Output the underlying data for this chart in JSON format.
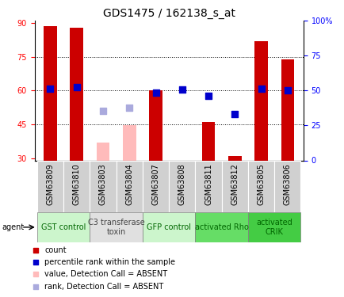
{
  "title": "GDS1475 / 162138_s_at",
  "samples": [
    "GSM63809",
    "GSM63810",
    "GSM63803",
    "GSM63804",
    "GSM63807",
    "GSM63808",
    "GSM63811",
    "GSM63812",
    "GSM63805",
    "GSM63806"
  ],
  "groups": [
    {
      "label": "GST control",
      "span": [
        0,
        2
      ],
      "color": "#ccf5cc"
    },
    {
      "label": "C3 transferase\ntoxin",
      "span": [
        2,
        4
      ],
      "color": "#e0e0e0"
    },
    {
      "label": "GFP control",
      "span": [
        4,
        6
      ],
      "color": "#ccf5cc"
    },
    {
      "label": "activated Rho",
      "span": [
        6,
        8
      ],
      "color": "#66dd66"
    },
    {
      "label": "activated\nCRIK",
      "span": [
        8,
        10
      ],
      "color": "#44cc44"
    }
  ],
  "bar_values": [
    88.5,
    88.0,
    null,
    null,
    60.0,
    null,
    46.0,
    31.0,
    82.0,
    74.0
  ],
  "bar_absent_values": [
    null,
    null,
    37.0,
    44.5,
    null,
    null,
    null,
    null,
    null,
    null
  ],
  "dot_values": [
    61.0,
    61.5,
    null,
    null,
    59.0,
    60.5,
    57.5,
    49.5,
    61.0,
    60.0
  ],
  "dot_absent_values": [
    null,
    null,
    51.0,
    52.5,
    null,
    null,
    null,
    null,
    null,
    null
  ],
  "ylim_left": [
    29,
    91
  ],
  "ylim_right": [
    0,
    100
  ],
  "yticks_left": [
    30,
    45,
    60,
    75,
    90
  ],
  "yticks_right": [
    0,
    25,
    50,
    75,
    100
  ],
  "bar_color": "#cc0000",
  "bar_absent_color": "#ffbbbb",
  "dot_color": "#0000cc",
  "dot_absent_color": "#aaaadd",
  "bar_width": 0.5,
  "dot_size": 28,
  "sample_label_fontsize": 7,
  "group_label_fontsize": 7,
  "title_fontsize": 10,
  "legend_fontsize": 7,
  "agent_fontsize": 7,
  "tick_fontsize": 7,
  "legend_items": [
    {
      "color": "#cc0000",
      "label": "count"
    },
    {
      "color": "#0000cc",
      "label": "percentile rank within the sample"
    },
    {
      "color": "#ffbbbb",
      "label": "value, Detection Call = ABSENT"
    },
    {
      "color": "#aaaadd",
      "label": "rank, Detection Call = ABSENT"
    }
  ],
  "sample_box_color": "#d0d0d0",
  "spine_color": "#000000"
}
